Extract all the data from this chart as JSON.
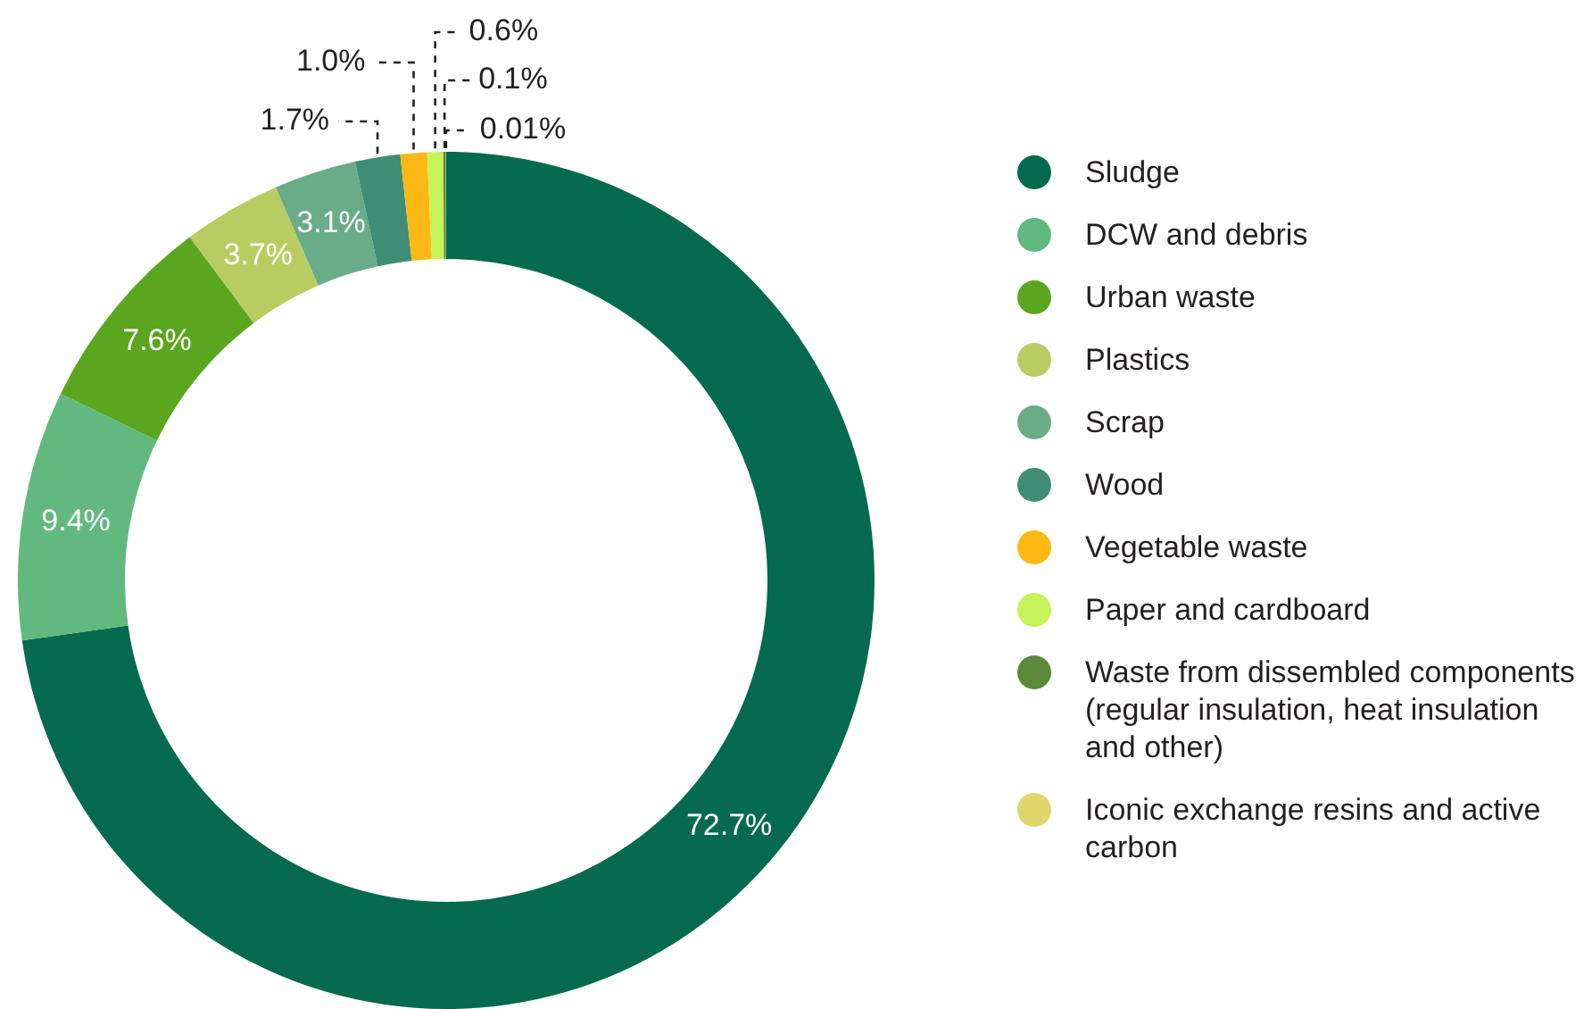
{
  "chart_data": {
    "type": "donut",
    "categories": [
      "Sludge",
      "DCW and debris",
      "Urban waste",
      "Plastics",
      "Scrap",
      "Wood",
      "Vegetable waste",
      "Paper and cardboard",
      "Waste from dissembled components (regular insulation, heat insulation and other)",
      "Iconic exchange resins and active carbon"
    ],
    "values": [
      72.7,
      9.4,
      7.6,
      3.7,
      3.1,
      1.7,
      1.0,
      0.6,
      0.1,
      0.01
    ],
    "value_labels": [
      "72.7%",
      "9.4%",
      "7.6%",
      "3.7%",
      "3.1%",
      "1.7%",
      "1.0%",
      "0.6%",
      "0.1%",
      "0.01%"
    ],
    "colors": [
      "#066a4e",
      "#62b97f",
      "#5aa61e",
      "#b9cc62",
      "#6aab88",
      "#3f8d75",
      "#fdb913",
      "#c6f25a",
      "#5a8a3a",
      "#e0d66a"
    ],
    "legend": "right"
  }
}
